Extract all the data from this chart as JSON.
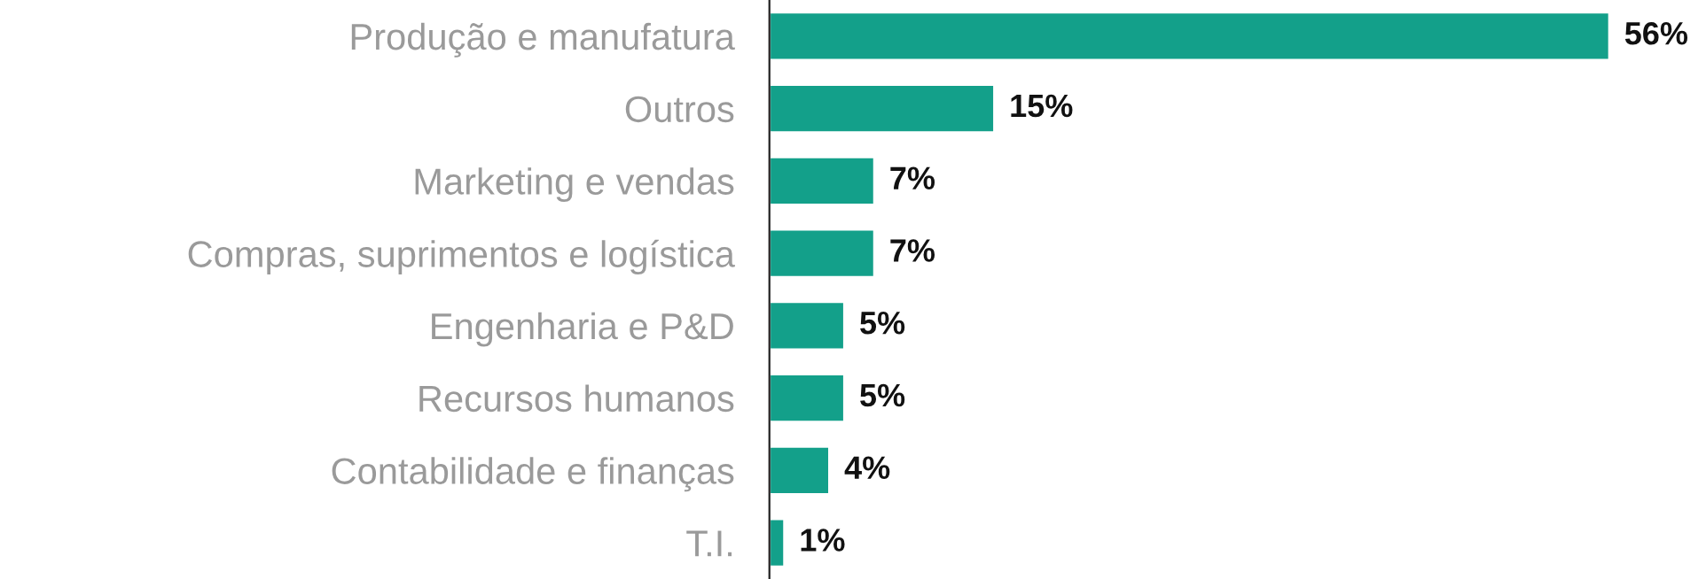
{
  "chart_data": {
    "type": "bar",
    "orientation": "horizontal",
    "categories": [
      "Produção e manufatura",
      "Outros",
      "Marketing e vendas",
      "Compras, suprimentos e logística",
      "Engenharia e P&D",
      "Recursos humanos",
      "Contabilidade e finanças",
      "T.I."
    ],
    "values": [
      56,
      15,
      7,
      7,
      5,
      5,
      4,
      1
    ],
    "value_labels": [
      "56%",
      "15%",
      "7%",
      "7%",
      "5%",
      "5%",
      "4%",
      "1%"
    ],
    "color": "#13a08a",
    "grid": false,
    "legend": false
  }
}
